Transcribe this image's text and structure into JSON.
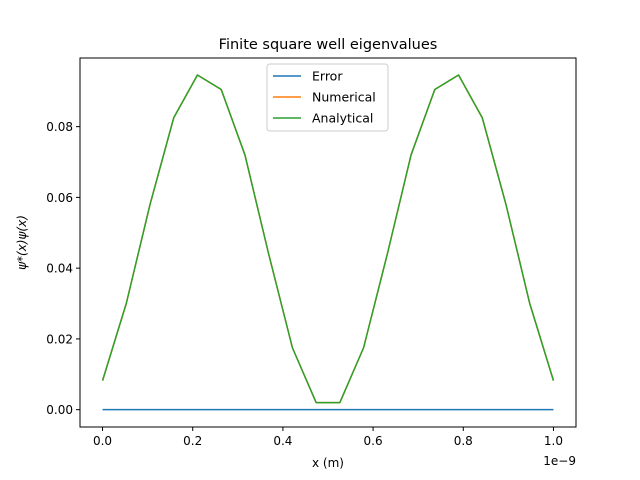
{
  "chart_data": {
    "type": "line",
    "title": "Finite square well eigenvalues",
    "xlabel": "x (m)",
    "ylabel": "ψ*(x)ψ(x)",
    "x_offset_label": "1e−9",
    "xlim": [
      -0.05,
      1.05
    ],
    "ylim": [
      -0.0049,
      0.0994
    ],
    "x_ticks": [
      0.0,
      0.2,
      0.4,
      0.6,
      0.8,
      1.0
    ],
    "x_tick_labels": [
      "0.0",
      "0.2",
      "0.4",
      "0.6",
      "0.8",
      "1.0"
    ],
    "y_ticks": [
      0.0,
      0.02,
      0.04,
      0.06,
      0.08
    ],
    "y_tick_labels": [
      "0.00",
      "0.02",
      "0.04",
      "0.06",
      "0.08"
    ],
    "grid": false,
    "legend_position": "top-center",
    "x": [
      0.0,
      0.0526,
      0.1053,
      0.1579,
      0.2105,
      0.2632,
      0.3158,
      0.3684,
      0.4211,
      0.4737,
      0.5263,
      0.5789,
      0.6316,
      0.6842,
      0.7368,
      0.7895,
      0.8421,
      0.8947,
      0.9474,
      1.0
    ],
    "series": [
      {
        "name": "Error",
        "color": "#1f77b4",
        "values": [
          0,
          0,
          0,
          0,
          0,
          0,
          0,
          0,
          0,
          0,
          0,
          0,
          0,
          0,
          0,
          0,
          0,
          0,
          0,
          0
        ]
      },
      {
        "name": "Numerical",
        "color": "#ff7f0e",
        "values": [
          0.0082,
          0.03,
          0.058,
          0.0825,
          0.0946,
          0.0905,
          0.072,
          0.044,
          0.0175,
          0.002,
          0.002,
          0.0175,
          0.044,
          0.072,
          0.0905,
          0.0946,
          0.0825,
          0.058,
          0.03,
          0.0082
        ]
      },
      {
        "name": "Analytical",
        "color": "#2ca02c",
        "values": [
          0.0082,
          0.03,
          0.058,
          0.0825,
          0.0946,
          0.0905,
          0.072,
          0.044,
          0.0175,
          0.002,
          0.002,
          0.0175,
          0.044,
          0.072,
          0.0905,
          0.0946,
          0.0825,
          0.058,
          0.03,
          0.0082
        ]
      }
    ]
  }
}
